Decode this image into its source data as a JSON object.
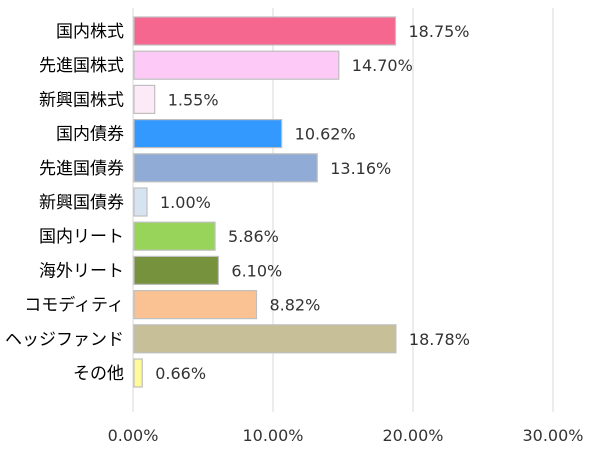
{
  "chart_data": {
    "type": "bar",
    "orientation": "horizontal",
    "categories": [
      "国内株式",
      "先進国株式",
      "新興国株式",
      "国内債券",
      "先進国債券",
      "新興国債券",
      "国内リート",
      "海外リート",
      "コモディティ",
      "ヘッジファンド",
      "その他"
    ],
    "values": [
      18.75,
      14.7,
      1.55,
      10.62,
      13.16,
      1.0,
      5.86,
      6.1,
      8.82,
      18.78,
      0.66
    ],
    "value_labels": [
      "18.75%",
      "14.70%",
      "1.55%",
      "10.62%",
      "13.16%",
      "1.00%",
      "5.86%",
      "6.10%",
      "8.82%",
      "18.78%",
      "0.66%"
    ],
    "colors": [
      "#f5678f",
      "#fdcaf8",
      "#fdeaf8",
      "#3399ff",
      "#90acd6",
      "#d6e4f2",
      "#99d45a",
      "#77923c",
      "#fac292",
      "#c6bf98",
      "#fffb99"
    ],
    "xlim": [
      0,
      30
    ],
    "xticks": [
      0,
      10,
      20,
      30
    ],
    "xtick_labels": [
      "0.00%",
      "10.00%",
      "20.00%",
      "30.00%"
    ],
    "grid": true,
    "title": "",
    "xlabel": "",
    "ylabel": ""
  }
}
